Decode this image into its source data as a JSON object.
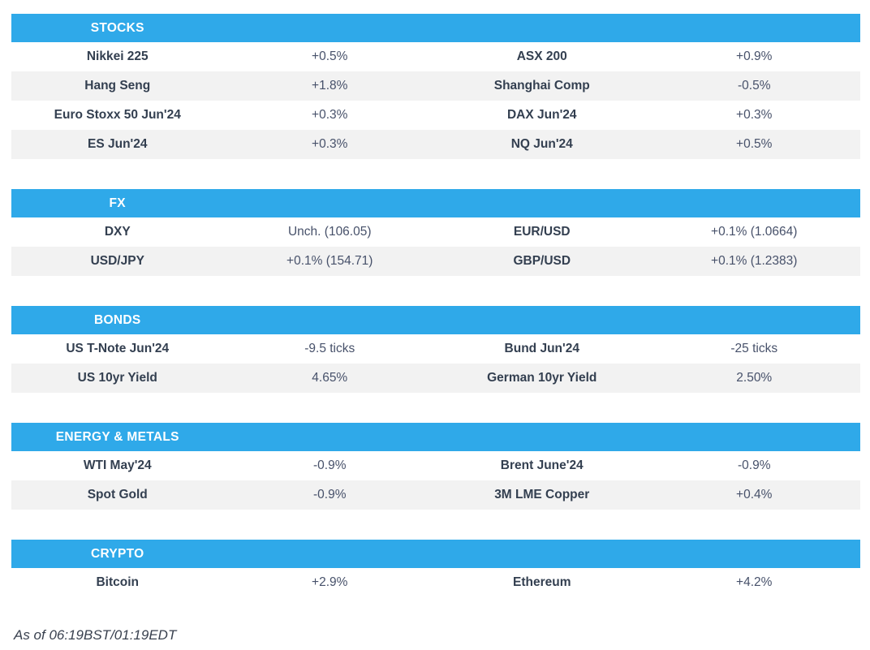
{
  "sections": [
    {
      "title": "STOCKS",
      "rows": [
        [
          "Nikkei 225",
          "+0.5%",
          "ASX 200",
          "+0.9%"
        ],
        [
          "Hang Seng",
          "+1.8%",
          "Shanghai Comp",
          "-0.5%"
        ],
        [
          "Euro Stoxx 50 Jun'24",
          "+0.3%",
          "DAX Jun'24",
          "+0.3%"
        ],
        [
          "ES Jun'24",
          "+0.3%",
          "NQ Jun'24",
          "+0.5%"
        ]
      ]
    },
    {
      "title": "FX",
      "rows": [
        [
          "DXY",
          "Unch. (106.05)",
          "EUR/USD",
          "+0.1% (1.0664)"
        ],
        [
          "USD/JPY",
          "+0.1% (154.71)",
          "GBP/USD",
          "+0.1% (1.2383)"
        ]
      ]
    },
    {
      "title": "BONDS",
      "rows": [
        [
          "US T-Note Jun'24",
          "-9.5 ticks",
          "Bund Jun'24",
          "-25 ticks"
        ],
        [
          "US 10yr Yield",
          "4.65%",
          "German 10yr Yield",
          "2.50%"
        ]
      ]
    },
    {
      "title": "ENERGY & METALS",
      "rows": [
        [
          "WTI May'24",
          "-0.9%",
          "Brent June'24",
          "-0.9%"
        ],
        [
          "Spot Gold",
          "-0.9%",
          "3M LME Copper",
          "+0.4%"
        ]
      ]
    },
    {
      "title": "CRYPTO",
      "rows": [
        [
          "Bitcoin",
          "+2.9%",
          "Ethereum",
          "+4.2%"
        ]
      ]
    }
  ],
  "footer": {
    "as_of": "As of 06:19BST/01:19EDT"
  },
  "colors": {
    "header_bg": "#2FA9E9",
    "row_alt_bg": "#F2F2F2",
    "label_text": "#333F50",
    "value_text": "#47516A"
  }
}
